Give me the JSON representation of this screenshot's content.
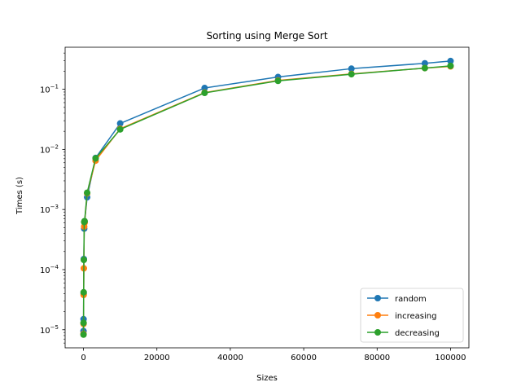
{
  "chart_data": {
    "type": "line",
    "title": "Sorting using Merge Sort",
    "xlabel": "Sizes",
    "ylabel": "Times (s)",
    "yscale": "log",
    "xlim": [
      -5000,
      105000
    ],
    "ylim": [
      5e-06,
      0.5
    ],
    "xticks": [
      0,
      20000,
      40000,
      60000,
      80000,
      100000
    ],
    "xtick_labels": [
      "0",
      "20000",
      "40000",
      "60000",
      "80000",
      "100000"
    ],
    "yticks": [
      1e-05,
      0.0001,
      0.001,
      0.01,
      0.1
    ],
    "ytick_labels": [
      {
        "base": "10",
        "exp": "−5"
      },
      {
        "base": "10",
        "exp": "−4"
      },
      {
        "base": "10",
        "exp": "−3"
      },
      {
        "base": "10",
        "exp": "−2"
      },
      {
        "base": "10",
        "exp": "−1"
      }
    ],
    "legend_position": "lower-right",
    "marker": "circle",
    "series": [
      {
        "name": "random",
        "color": "#1f77b4",
        "points": [
          [
            10,
            9.5e-06
          ],
          [
            20,
            1.5e-05
          ],
          [
            50,
            4e-05
          ],
          [
            100,
            0.00015
          ],
          [
            200,
            0.00048
          ],
          [
            300,
            0.00062
          ],
          [
            1000,
            0.0016
          ],
          [
            3300,
            0.0072
          ],
          [
            10000,
            0.027
          ],
          [
            33000,
            0.105
          ],
          [
            53000,
            0.16
          ],
          [
            73000,
            0.22
          ],
          [
            93000,
            0.27
          ],
          [
            100000,
            0.295
          ]
        ]
      },
      {
        "name": "increasing",
        "color": "#ff7f0e",
        "points": [
          [
            10,
            8.5e-06
          ],
          [
            20,
            1.25e-05
          ],
          [
            50,
            3.8e-05
          ],
          [
            100,
            0.000105
          ],
          [
            200,
            0.00052
          ],
          [
            300,
            0.0006
          ],
          [
            1000,
            0.00185
          ],
          [
            3300,
            0.0065
          ],
          [
            10000,
            0.022
          ],
          [
            33000,
            0.088
          ],
          [
            53000,
            0.14
          ],
          [
            73000,
            0.18
          ],
          [
            93000,
            0.225
          ],
          [
            100000,
            0.24
          ]
        ]
      },
      {
        "name": "decreasing",
        "color": "#2ca02c",
        "points": [
          [
            10,
            8.3e-06
          ],
          [
            20,
            1.3e-05
          ],
          [
            50,
            4.2e-05
          ],
          [
            100,
            0.000145
          ],
          [
            200,
            0.00062
          ],
          [
            300,
            0.00064
          ],
          [
            1000,
            0.0019
          ],
          [
            3300,
            0.0071
          ],
          [
            10000,
            0.0215
          ],
          [
            33000,
            0.087
          ],
          [
            53000,
            0.138
          ],
          [
            73000,
            0.178
          ],
          [
            93000,
            0.225
          ],
          [
            100000,
            0.245
          ]
        ]
      }
    ]
  }
}
